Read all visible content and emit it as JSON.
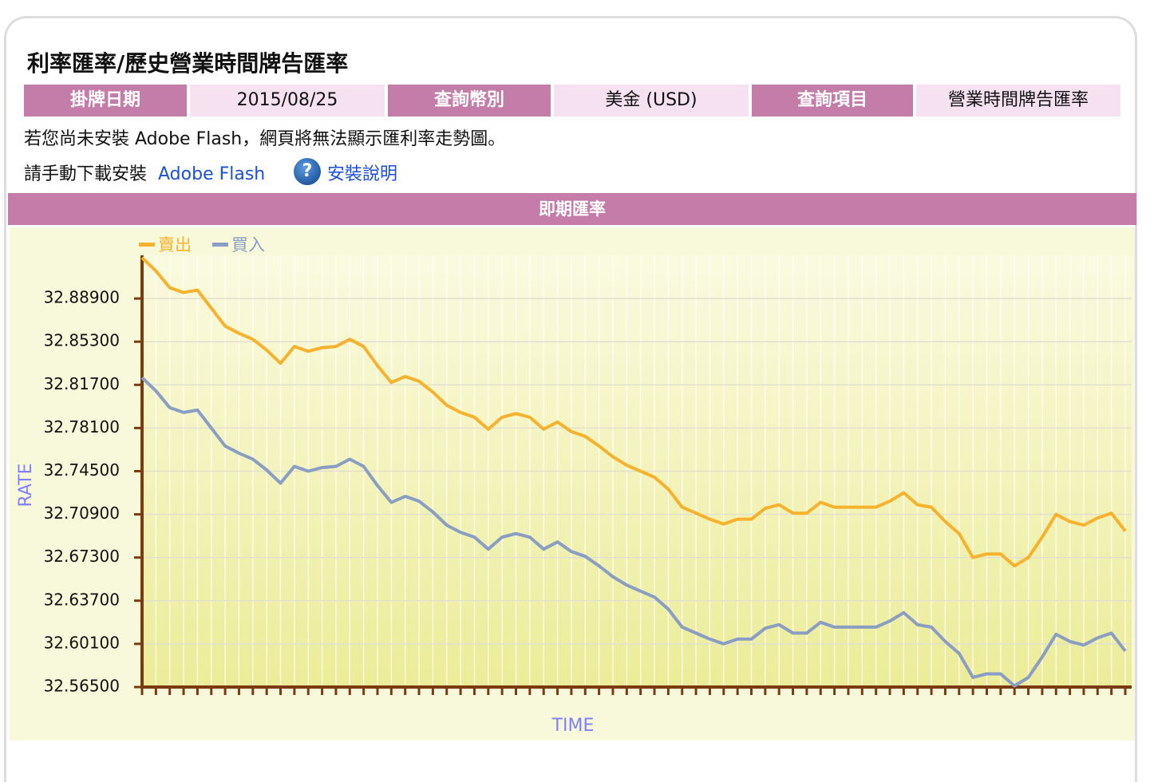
{
  "header": {
    "title": "利率匯率/歷史營業時間牌告匯率"
  },
  "table": {
    "cells": [
      "掛牌日期",
      "2015/08/25",
      "查詢幣別",
      "美金 (USD)",
      "查詢項目",
      "營業時間牌告匯率"
    ]
  },
  "notice": {
    "line1": "若您尚未安裝 Adobe Flash，網頁將無法顯示匯利率走勢圖。",
    "line2": "請手動下載安裝",
    "flash_link": "Adobe Flash",
    "help_icon": "?",
    "help_link": "安裝說明"
  },
  "section": {
    "title": "即期匯率"
  },
  "chart_data": {
    "type": "line",
    "xlabel": "TIME",
    "ylabel": "RATE",
    "grid": true,
    "legend": "top-left",
    "categories": [
      null,
      null,
      null,
      null,
      null,
      null,
      null,
      null,
      null,
      null,
      null,
      null,
      null,
      null,
      null,
      null,
      null,
      null,
      null,
      null,
      null,
      null,
      null,
      null,
      null,
      null,
      null,
      null,
      null,
      null,
      null,
      null,
      null,
      null,
      null,
      null,
      null,
      null,
      null,
      null,
      null,
      null,
      null,
      null,
      null,
      null,
      null,
      null,
      null,
      null,
      null,
      null,
      null,
      null,
      null,
      null,
      null,
      null,
      null,
      null,
      null,
      null,
      null,
      null,
      null,
      null,
      null,
      null,
      null,
      null,
      null,
      null
    ],
    "series": [
      {
        "name": "賣出",
        "color": "#f7b22d",
        "values": [
          32.923,
          32.912,
          32.898,
          32.894,
          32.896,
          32.881,
          32.866,
          32.86,
          32.855,
          32.846,
          32.835,
          32.849,
          32.845,
          32.848,
          32.849,
          32.855,
          32.849,
          32.833,
          32.819,
          32.824,
          32.82,
          32.811,
          32.8,
          32.794,
          32.79,
          32.78,
          32.79,
          32.793,
          32.79,
          32.78,
          32.786,
          32.778,
          32.774,
          32.766,
          32.757,
          32.75,
          32.745,
          32.74,
          32.73,
          32.715,
          32.71,
          32.705,
          32.701,
          32.705,
          32.705,
          32.714,
          32.717,
          32.71,
          32.71,
          32.719,
          32.715,
          32.715,
          32.715,
          32.715,
          32.72,
          32.727,
          32.717,
          32.715,
          32.703,
          32.693,
          32.673,
          32.676,
          32.676,
          32.666,
          32.673,
          32.69,
          32.709,
          32.703,
          32.7,
          32.706,
          32.71,
          32.695
        ]
      },
      {
        "name": "買入",
        "color": "#8a9ec3",
        "values": [
          32.823,
          32.812,
          32.798,
          32.794,
          32.796,
          32.781,
          32.766,
          32.76,
          32.755,
          32.746,
          32.735,
          32.749,
          32.745,
          32.748,
          32.749,
          32.755,
          32.749,
          32.733,
          32.719,
          32.724,
          32.72,
          32.711,
          32.7,
          32.694,
          32.69,
          32.68,
          32.69,
          32.693,
          32.69,
          32.68,
          32.686,
          32.678,
          32.674,
          32.666,
          32.657,
          32.65,
          32.645,
          32.64,
          32.63,
          32.615,
          32.61,
          32.605,
          32.601,
          32.605,
          32.605,
          32.614,
          32.617,
          32.61,
          32.61,
          32.619,
          32.615,
          32.615,
          32.615,
          32.615,
          32.62,
          32.627,
          32.617,
          32.615,
          32.603,
          32.593,
          32.573,
          32.576,
          32.576,
          32.566,
          32.573,
          32.59,
          32.609,
          32.603,
          32.6,
          32.606,
          32.61,
          32.595
        ]
      }
    ],
    "ylim": [
      32.565,
      32.925
    ],
    "yticks": [
      {
        "value": 32.565,
        "label": "32.56500"
      },
      {
        "value": 32.601,
        "label": "32.60100"
      },
      {
        "value": 32.637,
        "label": "32.63700"
      },
      {
        "value": 32.673,
        "label": "32.67300"
      },
      {
        "value": 32.709,
        "label": "32.70900"
      },
      {
        "value": 32.745,
        "label": "32.74500"
      },
      {
        "value": 32.781,
        "label": "32.78100"
      },
      {
        "value": 32.817,
        "label": "32.81700"
      },
      {
        "value": 32.853,
        "label": "32.85300"
      },
      {
        "value": 32.889,
        "label": "32.88900"
      }
    ]
  }
}
